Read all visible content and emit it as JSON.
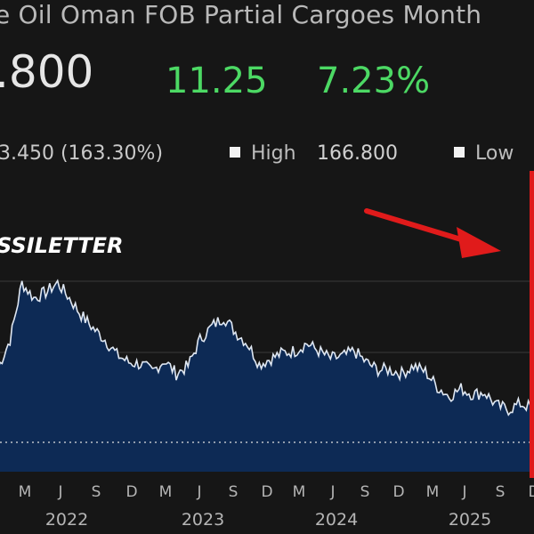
{
  "header": {
    "title": "e Oil Oman FOB Partial Cargoes Month",
    "price": ".800",
    "change": "11.25",
    "change_pct": "7.23%",
    "stats_text": "3.450 (163.30%)",
    "high_label": "High",
    "high_value": "166.800",
    "low_label": "Low"
  },
  "watermark": "SSILETTER",
  "colors": {
    "background": "#161616",
    "area_fill": "#0d2a55",
    "line": "#dfe7f2",
    "up": "#4cd964",
    "annotation": "#e01b1b"
  },
  "chart_data": {
    "type": "area",
    "x_tick_labels": [
      "M",
      "J",
      "S",
      "D",
      "M",
      "J",
      "S",
      "D",
      "M",
      "J",
      "S",
      "D",
      "M",
      "J",
      "S",
      "D"
    ],
    "year_labels": [
      "2022",
      "2023",
      "2024",
      "2025"
    ],
    "reference_line": "dotted horizontal line at the current level",
    "annotation": "red arrow pointing to a vertical red marker at the right edge",
    "grid": "horizontal",
    "x": [
      "2022-02",
      "2022-03",
      "2022-04",
      "2022-05",
      "2022-06",
      "2022-07",
      "2022-08",
      "2022-09",
      "2022-10",
      "2022-11",
      "2022-12",
      "2023-01",
      "2023-02",
      "2023-03",
      "2023-04",
      "2023-05",
      "2023-06",
      "2023-07",
      "2023-08",
      "2023-09",
      "2023-10",
      "2023-11",
      "2023-12",
      "2024-01",
      "2024-02",
      "2024-03",
      "2024-04",
      "2024-05",
      "2024-06",
      "2024-07",
      "2024-08",
      "2024-09",
      "2024-10",
      "2024-11",
      "2024-12",
      "2025-01",
      "2025-02",
      "2025-03",
      "2025-04",
      "2025-05",
      "2025-06",
      "2025-07",
      "2025-08",
      "2025-09",
      "2025-10",
      "2025-11"
    ],
    "values": [
      55,
      70,
      100,
      92,
      95,
      100,
      92,
      83,
      76,
      70,
      62,
      58,
      57,
      53,
      59,
      52,
      56,
      70,
      77,
      82,
      74,
      68,
      57,
      60,
      63,
      64,
      68,
      64,
      60,
      61,
      64,
      58,
      54,
      54,
      52,
      56,
      53,
      45,
      40,
      44,
      41,
      42,
      35,
      33,
      36,
      34
    ]
  }
}
